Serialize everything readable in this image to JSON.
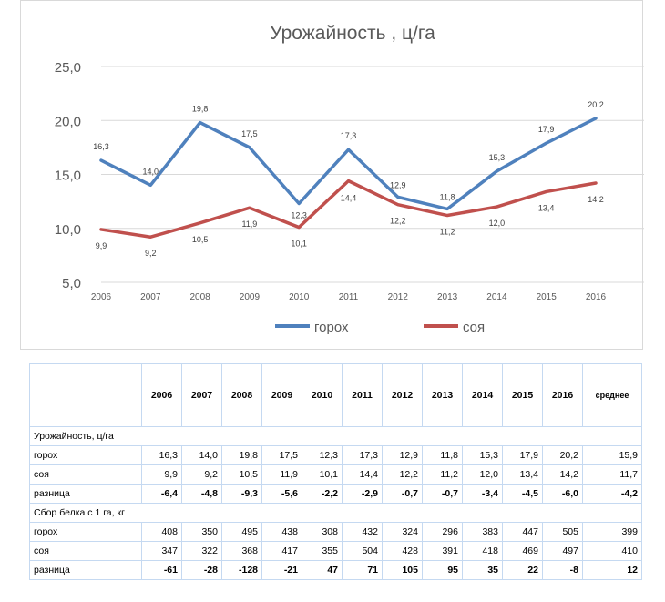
{
  "chart_data": {
    "type": "line",
    "title": "Урожайность , ц/га",
    "categories": [
      "2006",
      "2007",
      "2008",
      "2009",
      "2010",
      "2011",
      "2012",
      "2013",
      "2014",
      "2015",
      "2016"
    ],
    "ylim": [
      5,
      25
    ],
    "yticks": [
      "5,0",
      "10,0",
      "15,0",
      "20,0",
      "25,0"
    ],
    "grid": true,
    "legend_position": "bottom",
    "series": [
      {
        "name": "горох",
        "color": "#4f81bd",
        "values": [
          16.3,
          14.0,
          19.8,
          17.5,
          12.3,
          17.3,
          12.9,
          11.8,
          15.3,
          17.9,
          20.2
        ],
        "labels": [
          "16,3",
          "14,0",
          "19,8",
          "17,5",
          "12,3",
          "17,3",
          "12,9",
          "11,8",
          "15,3",
          "17,9",
          "20,2"
        ]
      },
      {
        "name": "соя",
        "color": "#c0504d",
        "values": [
          9.9,
          9.2,
          10.5,
          11.9,
          10.1,
          14.4,
          12.2,
          11.2,
          12.0,
          13.4,
          14.2
        ],
        "labels": [
          "9,9",
          "9,2",
          "10,5",
          "11,9",
          "10,1",
          "14,4",
          "12,2",
          "11,2",
          "12,0",
          "13,4",
          "14,2"
        ]
      }
    ]
  },
  "table": {
    "years": [
      "2006",
      "2007",
      "2008",
      "2009",
      "2010",
      "2011",
      "2012",
      "2013",
      "2014",
      "2015",
      "2016"
    ],
    "avg_header": "среднее",
    "sections": [
      {
        "title": "Урожайность, ц/га",
        "rows": [
          {
            "label": "горох",
            "bold": false,
            "values": [
              "16,3",
              "14,0",
              "19,8",
              "17,5",
              "12,3",
              "17,3",
              "12,9",
              "11,8",
              "15,3",
              "17,9",
              "20,2"
            ],
            "avg": "15,9"
          },
          {
            "label": "соя",
            "bold": false,
            "values": [
              "9,9",
              "9,2",
              "10,5",
              "11,9",
              "10,1",
              "14,4",
              "12,2",
              "11,2",
              "12,0",
              "13,4",
              "14,2"
            ],
            "avg": "11,7"
          },
          {
            "label": "разница",
            "bold": true,
            "values": [
              "-6,4",
              "-4,8",
              "-9,3",
              "-5,6",
              "-2,2",
              "-2,9",
              "-0,7",
              "-0,7",
              "-3,4",
              "-4,5",
              "-6,0"
            ],
            "avg": "-4,2"
          }
        ]
      },
      {
        "title": "Сбор белка с 1 га, кг",
        "rows": [
          {
            "label": "горох",
            "bold": false,
            "values": [
              "408",
              "350",
              "495",
              "438",
              "308",
              "432",
              "324",
              "296",
              "383",
              "447",
              "505"
            ],
            "avg": "399"
          },
          {
            "label": "соя",
            "bold": false,
            "values": [
              "347",
              "322",
              "368",
              "417",
              "355",
              "504",
              "428",
              "391",
              "418",
              "469",
              "497"
            ],
            "avg": "410"
          },
          {
            "label": "разница",
            "bold": true,
            "values": [
              "-61",
              "-28",
              "-128",
              "-21",
              "47",
              "71",
              "105",
              "95",
              "35",
              "22",
              "-8"
            ],
            "avg": "12"
          }
        ]
      }
    ]
  }
}
